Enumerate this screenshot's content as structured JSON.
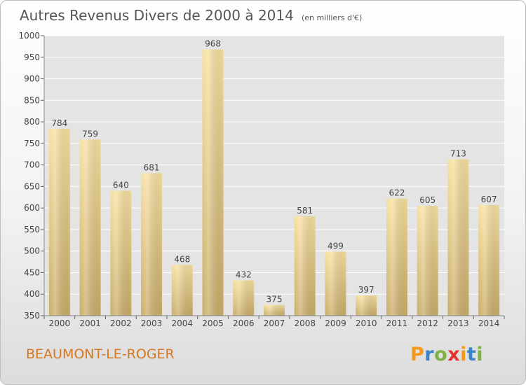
{
  "chart_data": {
    "type": "bar",
    "title": "Autres Revenus Divers de 2000 à 2014",
    "subtitle": "(en milliers d'€)",
    "categories": [
      "2000",
      "2001",
      "2002",
      "2003",
      "2004",
      "2005",
      "2006",
      "2007",
      "2008",
      "2009",
      "2010",
      "2011",
      "2012",
      "2013",
      "2014"
    ],
    "values": [
      784,
      759,
      640,
      681,
      468,
      968,
      432,
      375,
      581,
      499,
      397,
      622,
      605,
      713,
      607
    ],
    "ylim": [
      350,
      1000
    ],
    "yticks": [
      350,
      400,
      450,
      500,
      550,
      600,
      650,
      700,
      750,
      800,
      850,
      900,
      950,
      1000
    ],
    "xlabel": "",
    "ylabel": "",
    "grid": true,
    "bar_color": "#f0d890"
  },
  "location": {
    "name": "BEAUMONT-LE-ROGER",
    "color": "#d4771c"
  },
  "logo": {
    "letters": [
      {
        "char": "P",
        "color": "#f39a1e"
      },
      {
        "char": "r",
        "color": "#3a83c7"
      },
      {
        "char": "o",
        "color": "#7cb342"
      },
      {
        "char": "x",
        "color": "#e5322d"
      },
      {
        "char": "i",
        "color": "#f39a1e"
      },
      {
        "char": "t",
        "color": "#3a83c7"
      },
      {
        "char": "i",
        "color": "#7cb342"
      }
    ]
  }
}
